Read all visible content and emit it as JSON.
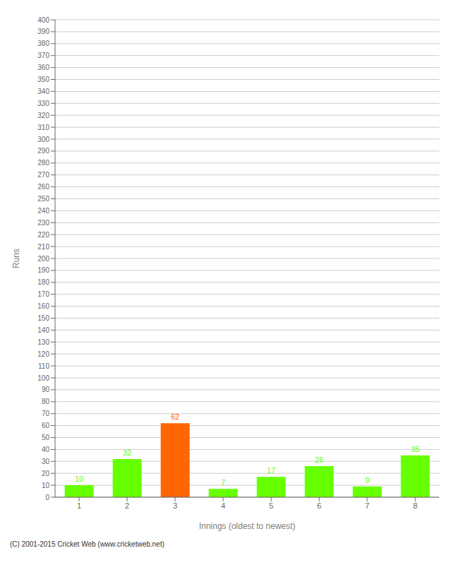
{
  "chart_data": {
    "type": "bar",
    "categories": [
      "1",
      "2",
      "3",
      "4",
      "5",
      "6",
      "7",
      "8"
    ],
    "values": [
      10,
      32,
      62,
      7,
      17,
      26,
      9,
      35
    ],
    "colors": [
      "#66ff00",
      "#66ff00",
      "#ff6600",
      "#66ff00",
      "#66ff00",
      "#66ff00",
      "#66ff00",
      "#66ff00"
    ],
    "x_label": "Innings (oldest to newest)",
    "y_label": "Runs",
    "ylim": [
      0,
      400
    ],
    "yticks": [
      0,
      10,
      20,
      30,
      40,
      50,
      60,
      70,
      80,
      90,
      100,
      110,
      120,
      130,
      140,
      150,
      160,
      170,
      180,
      190,
      200,
      210,
      220,
      230,
      240,
      250,
      260,
      270,
      280,
      290,
      300,
      310,
      320,
      330,
      340,
      350,
      360,
      370,
      380,
      390,
      400
    ],
    "grid": true,
    "data_labels": true,
    "annotations": [
      "(C) 2001-2015 Cricket Web (www.cricketweb.net)"
    ]
  }
}
